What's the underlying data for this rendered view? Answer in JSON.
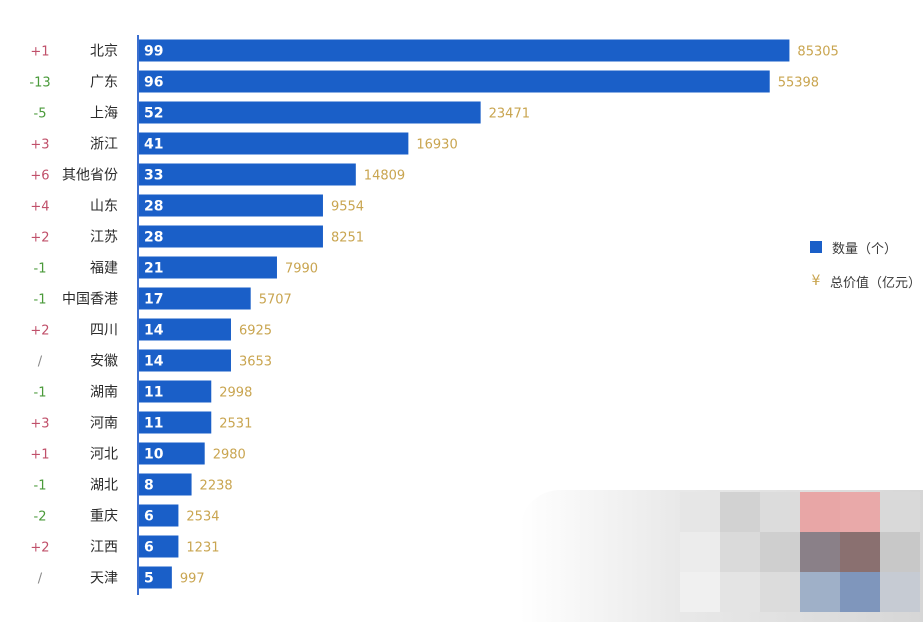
{
  "chart_data": {
    "type": "bar",
    "orientation": "horizontal",
    "categories": [
      "北京",
      "广东",
      "上海",
      "浙江",
      "其他省份",
      "山东",
      "江苏",
      "福建",
      "中国香港",
      "四川",
      "安徽",
      "湖南",
      "河南",
      "河北",
      "湖北",
      "重庆",
      "江西",
      "天津"
    ],
    "changes": [
      "+1",
      "-13",
      "-5",
      "+3",
      "+6",
      "+4",
      "+2",
      "-1",
      "-1",
      "+2",
      "/",
      "-1",
      "+3",
      "+1",
      "-1",
      "-2",
      "+2",
      "/"
    ],
    "series": [
      {
        "name": "数量（个）",
        "values": [
          99,
          96,
          52,
          41,
          33,
          28,
          28,
          21,
          17,
          14,
          14,
          11,
          11,
          10,
          8,
          6,
          6,
          5
        ]
      },
      {
        "name": "总价值（亿元）",
        "values": [
          85305,
          55398,
          23471,
          16930,
          14809,
          9554,
          8251,
          7990,
          5707,
          6925,
          3653,
          2998,
          2531,
          2980,
          2238,
          2534,
          1231,
          997
        ]
      }
    ],
    "xlim": [
      0,
      100
    ],
    "legend_position": "right"
  },
  "legend": {
    "count_label": "数量（个）",
    "value_symbol": "¥",
    "value_label": "总价值（亿元）"
  },
  "colors": {
    "bar": "#1a5fc8",
    "value_text": "#c9a550",
    "positive_change": "#c0506a",
    "negative_change": "#4a9a3a",
    "neutral_change": "#888888",
    "category_text": "#2b2b2b"
  }
}
